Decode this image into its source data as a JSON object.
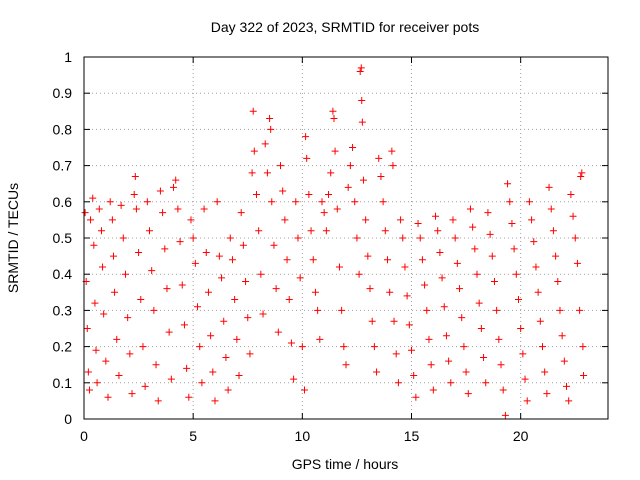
{
  "chart_data": {
    "type": "scatter",
    "title": "Day 322 of 2023, SRMTID for receiver pots",
    "xlabel": "GPS time / hours",
    "ylabel": "SRMTID / TECUs",
    "xlim": [
      0,
      24
    ],
    "ylim": [
      0,
      1
    ],
    "x_ticks": [
      0,
      5,
      10,
      15,
      20
    ],
    "x_tick_labels": [
      "0",
      "5",
      "10",
      "15",
      "20"
    ],
    "y_ticks": [
      0,
      0.1,
      0.2,
      0.3,
      0.4,
      0.5,
      0.6,
      0.7,
      0.8,
      0.9,
      1
    ],
    "y_tick_labels": [
      "0",
      "0.1",
      "0.2",
      "0.3",
      "0.4",
      "0.5",
      "0.6",
      "0.7",
      "0.8",
      "0.9",
      "1"
    ],
    "grid": true,
    "marker": "+",
    "marker_color": "#ff0000",
    "series": [
      {
        "name": "SRMTID",
        "description_of_distribution": "dense cloud of plus markers from 0 to ~22.8 h, values mostly 0.05-0.65 TECU",
        "points": [
          [
            0.05,
            0.57
          ],
          [
            0.1,
            0.38
          ],
          [
            0.15,
            0.25
          ],
          [
            0.2,
            0.13
          ],
          [
            0.25,
            0.08
          ],
          [
            0.3,
            0.55
          ],
          [
            0.4,
            0.61
          ],
          [
            0.45,
            0.48
          ],
          [
            0.5,
            0.32
          ],
          [
            0.55,
            0.19
          ],
          [
            0.6,
            0.1
          ],
          [
            0.7,
            0.58
          ],
          [
            0.8,
            0.52
          ],
          [
            0.85,
            0.42
          ],
          [
            0.9,
            0.29
          ],
          [
            1.0,
            0.16
          ],
          [
            1.1,
            0.06
          ],
          [
            1.2,
            0.6
          ],
          [
            1.3,
            0.55
          ],
          [
            1.35,
            0.45
          ],
          [
            1.4,
            0.35
          ],
          [
            1.5,
            0.22
          ],
          [
            1.6,
            0.12
          ],
          [
            1.7,
            0.59
          ],
          [
            1.8,
            0.5
          ],
          [
            1.9,
            0.4
          ],
          [
            2.0,
            0.28
          ],
          [
            2.1,
            0.18
          ],
          [
            2.2,
            0.07
          ],
          [
            2.3,
            0.62
          ],
          [
            2.35,
            0.67
          ],
          [
            2.4,
            0.58
          ],
          [
            2.5,
            0.46
          ],
          [
            2.6,
            0.33
          ],
          [
            2.7,
            0.2
          ],
          [
            2.8,
            0.09
          ],
          [
            2.9,
            0.6
          ],
          [
            3.0,
            0.52
          ],
          [
            3.1,
            0.41
          ],
          [
            3.2,
            0.3
          ],
          [
            3.3,
            0.15
          ],
          [
            3.4,
            0.05
          ],
          [
            3.5,
            0.63
          ],
          [
            3.6,
            0.57
          ],
          [
            3.7,
            0.47
          ],
          [
            3.8,
            0.36
          ],
          [
            3.9,
            0.24
          ],
          [
            4.0,
            0.11
          ],
          [
            4.1,
            0.64
          ],
          [
            4.2,
            0.66
          ],
          [
            4.3,
            0.58
          ],
          [
            4.4,
            0.49
          ],
          [
            4.5,
            0.37
          ],
          [
            4.6,
            0.26
          ],
          [
            4.7,
            0.14
          ],
          [
            4.8,
            0.06
          ],
          [
            4.9,
            0.55
          ],
          [
            5.0,
            0.5
          ],
          [
            5.1,
            0.43
          ],
          [
            5.2,
            0.31
          ],
          [
            5.3,
            0.2
          ],
          [
            5.4,
            0.1
          ],
          [
            5.5,
            0.58
          ],
          [
            5.6,
            0.46
          ],
          [
            5.7,
            0.35
          ],
          [
            5.8,
            0.23
          ],
          [
            5.9,
            0.13
          ],
          [
            6.0,
            0.05
          ],
          [
            6.1,
            0.6
          ],
          [
            6.2,
            0.45
          ],
          [
            6.3,
            0.39
          ],
          [
            6.4,
            0.27
          ],
          [
            6.5,
            0.17
          ],
          [
            6.6,
            0.08
          ],
          [
            6.7,
            0.5
          ],
          [
            6.8,
            0.44
          ],
          [
            6.9,
            0.33
          ],
          [
            7.0,
            0.22
          ],
          [
            7.1,
            0.12
          ],
          [
            7.2,
            0.57
          ],
          [
            7.3,
            0.48
          ],
          [
            7.4,
            0.38
          ],
          [
            7.5,
            0.28
          ],
          [
            7.6,
            0.18
          ],
          [
            7.7,
            0.68
          ],
          [
            7.75,
            0.85
          ],
          [
            7.8,
            0.74
          ],
          [
            7.9,
            0.62
          ],
          [
            8.0,
            0.52
          ],
          [
            8.1,
            0.4
          ],
          [
            8.2,
            0.29
          ],
          [
            8.3,
            0.76
          ],
          [
            8.4,
            0.68
          ],
          [
            8.5,
            0.83
          ],
          [
            8.55,
            0.8
          ],
          [
            8.6,
            0.6
          ],
          [
            8.7,
            0.48
          ],
          [
            8.8,
            0.36
          ],
          [
            8.9,
            0.24
          ],
          [
            9.0,
            0.7
          ],
          [
            9.1,
            0.63
          ],
          [
            9.2,
            0.55
          ],
          [
            9.3,
            0.44
          ],
          [
            9.4,
            0.33
          ],
          [
            9.5,
            0.21
          ],
          [
            9.6,
            0.11
          ],
          [
            9.7,
            0.6
          ],
          [
            9.8,
            0.5
          ],
          [
            9.9,
            0.39
          ],
          [
            10.0,
            0.2
          ],
          [
            10.1,
            0.08
          ],
          [
            10.15,
            0.78
          ],
          [
            10.2,
            0.72
          ],
          [
            10.3,
            0.62
          ],
          [
            10.4,
            0.52
          ],
          [
            10.5,
            0.44
          ],
          [
            10.6,
            0.35
          ],
          [
            10.7,
            0.3
          ],
          [
            10.8,
            0.22
          ],
          [
            10.9,
            0.6
          ],
          [
            11.0,
            0.57
          ],
          [
            11.1,
            0.52
          ],
          [
            11.2,
            0.62
          ],
          [
            11.3,
            0.68
          ],
          [
            11.4,
            0.85
          ],
          [
            11.45,
            0.83
          ],
          [
            11.5,
            0.74
          ],
          [
            11.6,
            0.58
          ],
          [
            11.7,
            0.42
          ],
          [
            11.8,
            0.3
          ],
          [
            11.9,
            0.2
          ],
          [
            12.0,
            0.15
          ],
          [
            12.1,
            0.64
          ],
          [
            12.2,
            0.7
          ],
          [
            12.3,
            0.75
          ],
          [
            12.4,
            0.6
          ],
          [
            12.5,
            0.5
          ],
          [
            12.6,
            0.4
          ],
          [
            12.65,
            0.96
          ],
          [
            12.7,
            0.97
          ],
          [
            12.72,
            0.88
          ],
          [
            12.75,
            0.82
          ],
          [
            12.8,
            0.66
          ],
          [
            12.9,
            0.55
          ],
          [
            13.0,
            0.45
          ],
          [
            13.1,
            0.36
          ],
          [
            13.2,
            0.27
          ],
          [
            13.3,
            0.2
          ],
          [
            13.4,
            0.13
          ],
          [
            13.5,
            0.72
          ],
          [
            13.6,
            0.67
          ],
          [
            13.7,
            0.6
          ],
          [
            13.8,
            0.52
          ],
          [
            13.9,
            0.44
          ],
          [
            14.0,
            0.35
          ],
          [
            14.1,
            0.74
          ],
          [
            14.15,
            0.7
          ],
          [
            14.2,
            0.27
          ],
          [
            14.3,
            0.18
          ],
          [
            14.4,
            0.1
          ],
          [
            14.5,
            0.55
          ],
          [
            14.6,
            0.5
          ],
          [
            14.7,
            0.42
          ],
          [
            14.8,
            0.34
          ],
          [
            14.9,
            0.26
          ],
          [
            15.0,
            0.19
          ],
          [
            15.1,
            0.12
          ],
          [
            15.2,
            0.06
          ],
          [
            15.3,
            0.54
          ],
          [
            15.4,
            0.5
          ],
          [
            15.5,
            0.44
          ],
          [
            15.6,
            0.37
          ],
          [
            15.7,
            0.3
          ],
          [
            15.8,
            0.22
          ],
          [
            15.9,
            0.15
          ],
          [
            16.0,
            0.08
          ],
          [
            16.1,
            0.56
          ],
          [
            16.2,
            0.52
          ],
          [
            16.3,
            0.46
          ],
          [
            16.4,
            0.39
          ],
          [
            16.5,
            0.31
          ],
          [
            16.6,
            0.23
          ],
          [
            16.7,
            0.16
          ],
          [
            16.8,
            0.1
          ],
          [
            16.9,
            0.55
          ],
          [
            17.0,
            0.5
          ],
          [
            17.1,
            0.43
          ],
          [
            17.2,
            0.36
          ],
          [
            17.3,
            0.28
          ],
          [
            17.4,
            0.2
          ],
          [
            17.5,
            0.13
          ],
          [
            17.6,
            0.07
          ],
          [
            17.7,
            0.58
          ],
          [
            17.8,
            0.53
          ],
          [
            17.9,
            0.47
          ],
          [
            18.0,
            0.4
          ],
          [
            18.1,
            0.32
          ],
          [
            18.2,
            0.25
          ],
          [
            18.3,
            0.17
          ],
          [
            18.4,
            0.1
          ],
          [
            18.5,
            0.57
          ],
          [
            18.6,
            0.51
          ],
          [
            18.7,
            0.45
          ],
          [
            18.8,
            0.38
          ],
          [
            18.9,
            0.3
          ],
          [
            19.0,
            0.22
          ],
          [
            19.1,
            0.15
          ],
          [
            19.2,
            0.08
          ],
          [
            19.3,
            0.01
          ],
          [
            19.4,
            0.65
          ],
          [
            19.5,
            0.6
          ],
          [
            19.6,
            0.54
          ],
          [
            19.7,
            0.47
          ],
          [
            19.8,
            0.4
          ],
          [
            19.9,
            0.33
          ],
          [
            20.0,
            0.25
          ],
          [
            20.1,
            0.18
          ],
          [
            20.2,
            0.11
          ],
          [
            20.3,
            0.05
          ],
          [
            20.4,
            0.6
          ],
          [
            20.5,
            0.55
          ],
          [
            20.6,
            0.49
          ],
          [
            20.7,
            0.42
          ],
          [
            20.8,
            0.35
          ],
          [
            20.9,
            0.27
          ],
          [
            21.0,
            0.2
          ],
          [
            21.1,
            0.13
          ],
          [
            21.2,
            0.07
          ],
          [
            21.3,
            0.64
          ],
          [
            21.4,
            0.58
          ],
          [
            21.5,
            0.52
          ],
          [
            21.6,
            0.45
          ],
          [
            21.7,
            0.38
          ],
          [
            21.8,
            0.3
          ],
          [
            21.9,
            0.23
          ],
          [
            22.0,
            0.16
          ],
          [
            22.1,
            0.09
          ],
          [
            22.2,
            0.05
          ],
          [
            22.3,
            0.62
          ],
          [
            22.4,
            0.56
          ],
          [
            22.5,
            0.5
          ],
          [
            22.6,
            0.43
          ],
          [
            22.7,
            0.3
          ],
          [
            22.75,
            0.67
          ],
          [
            22.8,
            0.68
          ],
          [
            22.85,
            0.2
          ],
          [
            22.88,
            0.12
          ]
        ]
      }
    ]
  }
}
